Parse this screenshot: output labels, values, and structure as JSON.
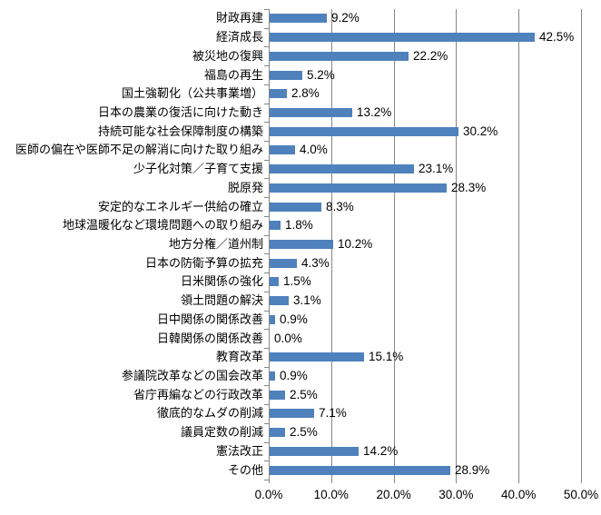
{
  "chart_data": {
    "type": "bar",
    "orientation": "horizontal",
    "title": "",
    "xlabel": "",
    "ylabel": "",
    "grid": true,
    "legend": false,
    "xlim": [
      0,
      50
    ],
    "x_ticks": [
      "0.0%",
      "10.0%",
      "20.0%",
      "30.0%",
      "40.0%",
      "50.0%"
    ],
    "categories": [
      "財政再建",
      "経済成長",
      "被災地の復興",
      "福島の再生",
      "国土強靭化（公共事業増）",
      "日本の農業の復活に向けた動き",
      "持続可能な社会保障制度の構築",
      "医師の偏在や医師不足の解消に向けた取り組み",
      "少子化対策／子育て支援",
      "脱原発",
      "安定的なエネルギー供給の確立",
      "地球温暖化など環境問題への取り組み",
      "地方分権／道州制",
      "日本の防衛予算の拡充",
      "日米関係の強化",
      "領土問題の解決",
      "日中関係の関係改善",
      "日韓関係の関係改善",
      "教育改革",
      "参議院改革などの国会改革",
      "省庁再編などの行政改革",
      "徹底的なムダの削減",
      "議員定数の削減",
      "憲法改正",
      "その他"
    ],
    "values": [
      9.2,
      42.5,
      22.2,
      5.2,
      2.8,
      13.2,
      30.2,
      4.0,
      23.1,
      28.3,
      8.3,
      1.8,
      10.2,
      4.3,
      1.5,
      3.1,
      0.9,
      0.0,
      15.1,
      0.9,
      2.5,
      7.1,
      2.5,
      14.2,
      28.9
    ],
    "value_labels": [
      "9.2%",
      "42.5%",
      "22.2%",
      "5.2%",
      "2.8%",
      "13.2%",
      "30.2%",
      "4.0%",
      "23.1%",
      "28.3%",
      "8.3%",
      "1.8%",
      "10.2%",
      "4.3%",
      "1.5%",
      "3.1%",
      "0.9%",
      "0.0%",
      "15.1%",
      "0.9%",
      "2.5%",
      "7.1%",
      "2.5%",
      "14.2%",
      "28.9%"
    ],
    "colors": {
      "bar": "#4F81BD",
      "gridline": "#868686",
      "axis": "#868686",
      "text": "#000000",
      "background": "#FFFFFF"
    }
  }
}
